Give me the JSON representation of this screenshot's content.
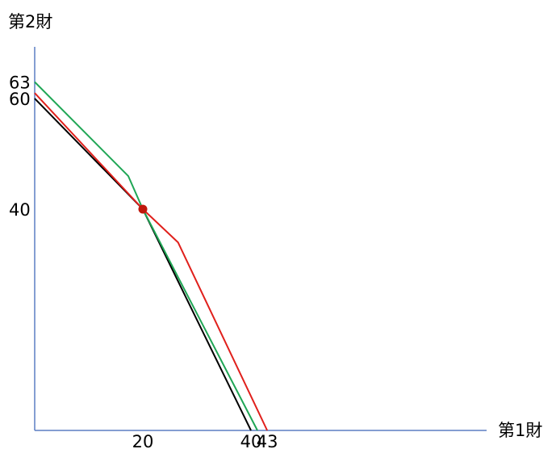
{
  "chart_data": {
    "type": "line",
    "title": "",
    "xlabel": "第1財",
    "ylabel": "第2財",
    "x_ticks": [
      {
        "label": "20",
        "value": 20
      },
      {
        "label": "40",
        "value": 40
      },
      {
        "label": "43",
        "value": 43
      }
    ],
    "y_ticks": [
      {
        "label": "40",
        "value": 40
      },
      {
        "label": "60",
        "value": 60
      },
      {
        "label": "63",
        "value": 63
      }
    ],
    "xlim": [
      0,
      82
    ],
    "ylim": [
      0,
      80
    ],
    "grid": false,
    "legend": "none",
    "axis_color": "#5b7fc4",
    "series": [
      {
        "color": "#000000",
        "points": [
          [
            0,
            60
          ],
          [
            20,
            40
          ],
          [
            40,
            0
          ]
        ]
      },
      {
        "color": "#e0201c",
        "points": [
          [
            0,
            61
          ],
          [
            20,
            40
          ],
          [
            26.5,
            34
          ],
          [
            43,
            0
          ]
        ]
      },
      {
        "color": "#1fa655",
        "points": [
          [
            0,
            63
          ],
          [
            17.3,
            46
          ],
          [
            20,
            40
          ],
          [
            41.2,
            0
          ]
        ]
      }
    ],
    "markers": [
      {
        "x": 20,
        "y": 40,
        "color": "#c0180c"
      }
    ]
  }
}
